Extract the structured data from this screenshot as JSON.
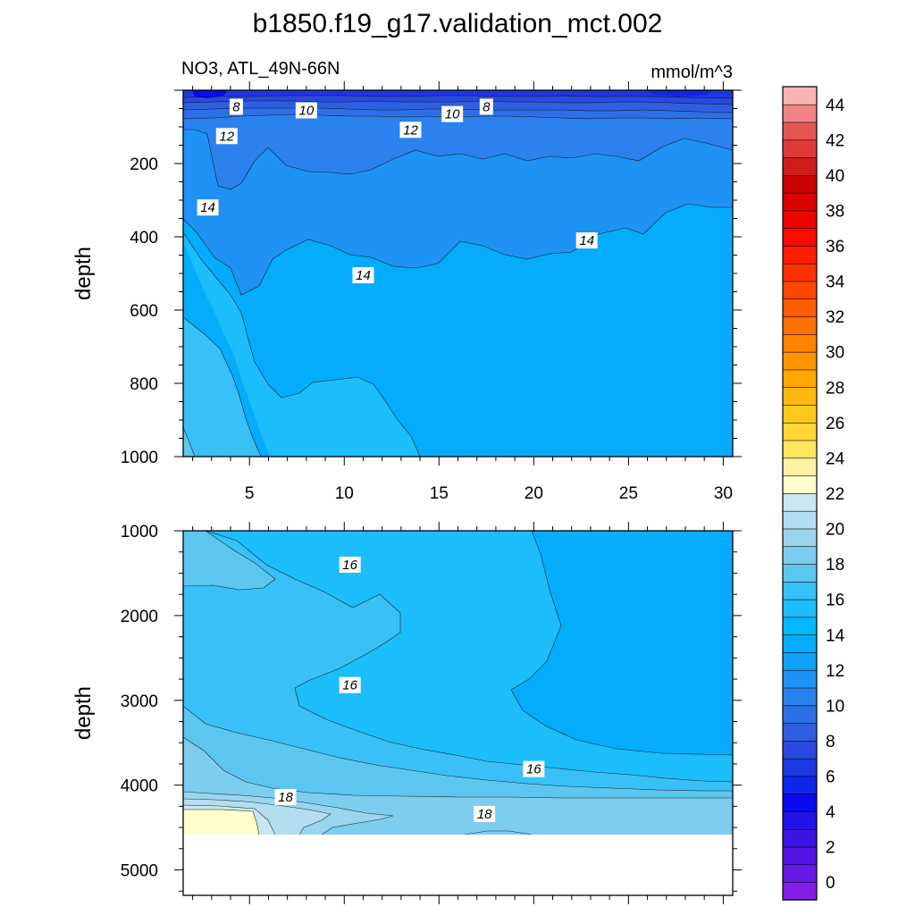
{
  "chart_data": {
    "type": "contour",
    "title": "b1850.f19_g17.validation_mct.002",
    "variable_label": "NO3, ATL_49N-66N",
    "units_label": "mmol/m^3",
    "ylabel": "depth",
    "x_range": [
      1.5,
      30.5
    ],
    "x_ticks": [
      5,
      10,
      15,
      20,
      25,
      30
    ],
    "top_panel": {
      "depth_range": [
        0,
        1000
      ],
      "y_ticks": [
        200,
        400,
        600,
        800,
        1000
      ],
      "contour_labels": [
        {
          "value": "8",
          "x": 4.3,
          "depth": 45
        },
        {
          "value": "10",
          "x": 8.0,
          "depth": 55
        },
        {
          "value": "10",
          "x": 15.7,
          "depth": 65
        },
        {
          "value": "8",
          "x": 17.5,
          "depth": 45
        },
        {
          "value": "12",
          "x": 3.8,
          "depth": 125
        },
        {
          "value": "12",
          "x": 13.5,
          "depth": 108
        },
        {
          "value": "14",
          "x": 2.8,
          "depth": 320
        },
        {
          "value": "14",
          "x": 11.0,
          "depth": 505
        },
        {
          "value": "14",
          "x": 22.8,
          "depth": 410
        }
      ]
    },
    "bottom_panel": {
      "depth_range": [
        1000,
        5300
      ],
      "y_ticks": [
        1000,
        2000,
        3000,
        4000,
        5000
      ],
      "contour_labels": [
        {
          "value": "16",
          "x": 10.3,
          "depth": 1400
        },
        {
          "value": "16",
          "x": 10.3,
          "depth": 2820
        },
        {
          "value": "16",
          "x": 20.0,
          "depth": 3810
        },
        {
          "value": "18",
          "x": 6.9,
          "depth": 4140
        },
        {
          "value": "18",
          "x": 17.4,
          "depth": 4340
        }
      ]
    },
    "colorbar": {
      "tick_labels": [
        "0",
        "2",
        "4",
        "6",
        "8",
        "10",
        "12",
        "14",
        "16",
        "18",
        "20",
        "22",
        "24",
        "26",
        "28",
        "30",
        "32",
        "34",
        "36",
        "38",
        "40",
        "42",
        "44"
      ],
      "levels": [
        0,
        1,
        2,
        3,
        4,
        5,
        6,
        7,
        8,
        9,
        10,
        11,
        12,
        13,
        14,
        15,
        16,
        17,
        18,
        19,
        20,
        21,
        22,
        23,
        24,
        25,
        26,
        27,
        28,
        29,
        30,
        31,
        32,
        33,
        34,
        35,
        36,
        37,
        38,
        39,
        40,
        41,
        42,
        43,
        44,
        45
      ],
      "colors": [
        "#8220e8",
        "#6a18e6",
        "#5214e4",
        "#3a14e2",
        "#2214e6",
        "#0a0aee",
        "#0f26e8",
        "#1c38e2",
        "#2a4ade",
        "#2f5fe0",
        "#2c6fe6",
        "#2b82ee",
        "#1f92f6",
        "#0fa1fb",
        "#05acfc",
        "#00b8ff",
        "#1cbdfb",
        "#39c0f7",
        "#5cc6f1",
        "#7ccdee",
        "#99d5ef",
        "#b3def0",
        "#c9e6f1",
        "#ffffcc",
        "#fff1a8",
        "#ffe45e",
        "#ffd637",
        "#ffc81c",
        "#ffb80c",
        "#ffa500",
        "#ff9400",
        "#ff8300",
        "#ff7000",
        "#ff5c00",
        "#ff4600",
        "#ff3200",
        "#ff1e00",
        "#ff0a00",
        "#f00000",
        "#dd0000",
        "#cc0000",
        "#d21c1c",
        "#df3838",
        "#e65555",
        "#f08484",
        "#f9b4b4"
      ]
    }
  }
}
